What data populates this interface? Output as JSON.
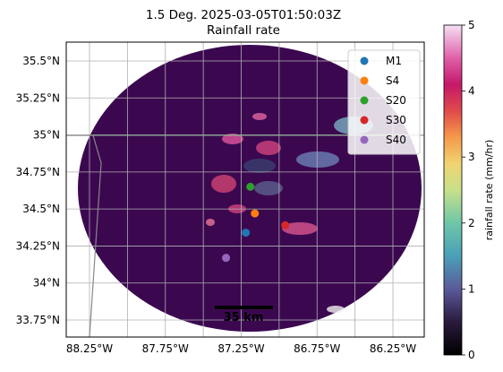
{
  "chart_data": {
    "type": "scatter",
    "title": "1.5 Deg. 2025-03-05T01:50:03Z",
    "subtitle": "Rainfall rate",
    "x_ticks": [
      "88.25°W",
      "87.75°W",
      "87.25°W",
      "86.75°W",
      "86.25°W"
    ],
    "x_tick_values": [
      -88.25,
      -87.75,
      -87.25,
      -86.75,
      -86.25
    ],
    "y_ticks": [
      "35.5°N",
      "35.25°N",
      "35°N",
      "34.75°N",
      "34.5°N",
      "34.25°N",
      "34°N",
      "33.75°N"
    ],
    "y_tick_values": [
      35.5,
      35.25,
      35.0,
      34.75,
      34.5,
      34.25,
      34.0,
      33.75
    ],
    "xlim": [
      -88.25,
      -86.25
    ],
    "ylim": [
      33.75,
      35.5
    ],
    "grid": true,
    "legend_position": "top-right",
    "series": [
      {
        "name": "M1",
        "color": "#1f77b4",
        "x": [
          -87.22
        ],
        "y": [
          34.34
        ]
      },
      {
        "name": "S4",
        "color": "#ff7f0e",
        "x": [
          -87.16
        ],
        "y": [
          34.47
        ]
      },
      {
        "name": "S20",
        "color": "#2ca02c",
        "x": [
          -87.19
        ],
        "y": [
          34.65
        ]
      },
      {
        "name": "S30",
        "color": "#d62728",
        "x": [
          -86.96
        ],
        "y": [
          34.39
        ]
      },
      {
        "name": "S40",
        "color": "#9467bd",
        "x": [
          -87.35
        ],
        "y": [
          34.17
        ]
      }
    ],
    "colorbar": {
      "label": "rainfall rate (mm/hr)",
      "min": 0,
      "max": 5,
      "ticks": [
        "0",
        "1",
        "2",
        "3",
        "4",
        "5"
      ],
      "colormap": "magma-like"
    },
    "scale_bar_label": "35 km",
    "field_color": "#3b0850"
  }
}
